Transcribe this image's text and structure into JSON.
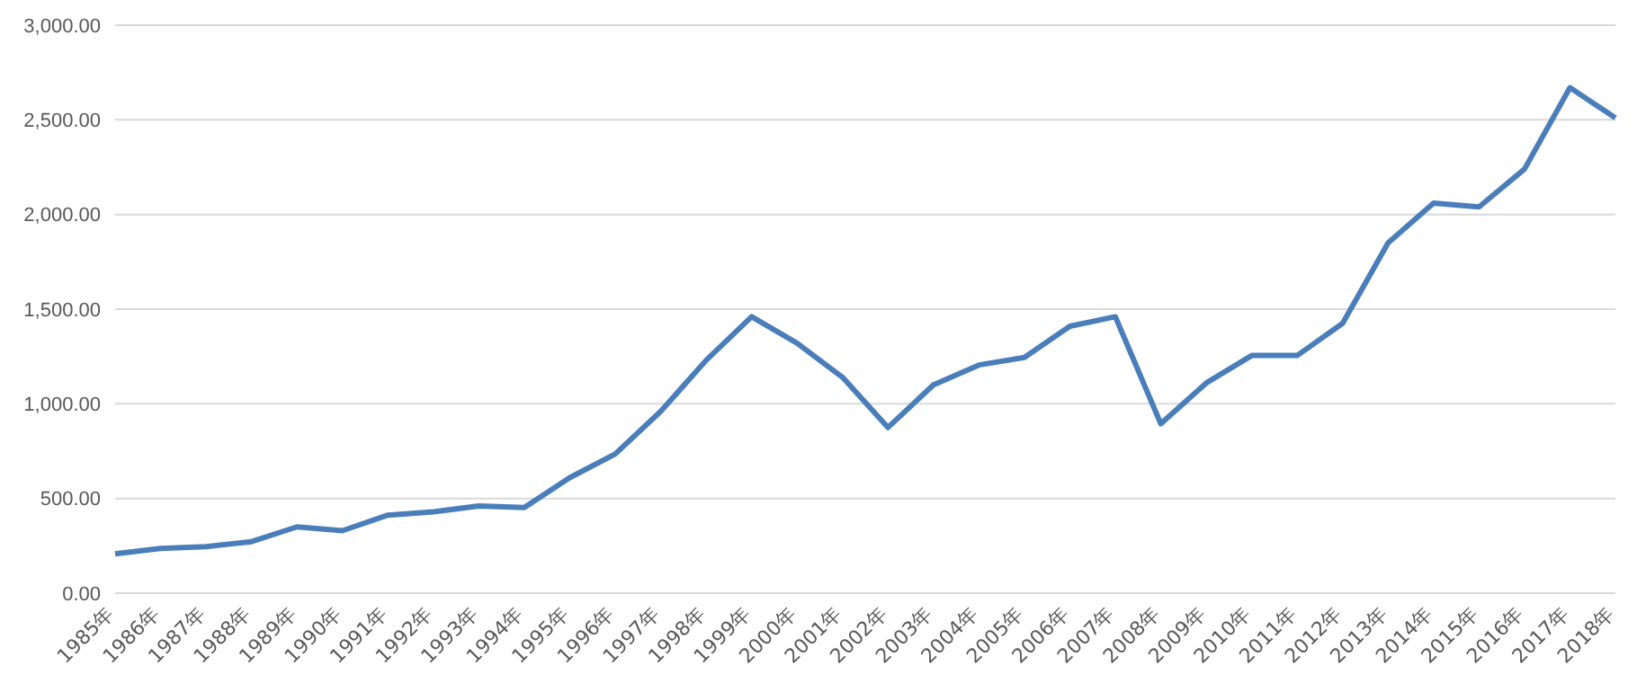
{
  "chart_data": {
    "type": "line",
    "categories": [
      "1985年",
      "1986年",
      "1987年",
      "1988年",
      "1989年",
      "1990年",
      "1991年",
      "1992年",
      "1993年",
      "1994年",
      "1995年",
      "1996年",
      "1997年",
      "1998年",
      "1999年",
      "2000年",
      "2001年",
      "2002年",
      "2003年",
      "2004年",
      "2005年",
      "2006年",
      "2007年",
      "2008年",
      "2009年",
      "2010年",
      "2011年",
      "2012年",
      "2013年",
      "2014年",
      "2015年",
      "2016年",
      "2017年",
      "2018年"
    ],
    "series": [
      {
        "color": "#4a7ebb",
        "values": [
          208,
          236,
          246,
          272,
          350,
          330,
          412,
          430,
          460,
          452,
          610,
          735,
          960,
          1230,
          1460,
          1320,
          1140,
          875,
          1100,
          1205,
          1245,
          1410,
          1460,
          895,
          1110,
          1255,
          1255,
          1425,
          1850,
          2060,
          2040,
          2240,
          2670,
          2510
        ]
      }
    ],
    "ylim": [
      0,
      3000
    ],
    "yticks": [
      {
        "value": 0,
        "label": "0.00"
      },
      {
        "value": 500,
        "label": "500.00"
      },
      {
        "value": 1000,
        "label": "1,000.00"
      },
      {
        "value": 1500,
        "label": "1,500.00"
      },
      {
        "value": 2000,
        "label": "2,000.00"
      },
      {
        "value": 2500,
        "label": "2,500.00"
      },
      {
        "value": 3000,
        "label": "3,000.00"
      }
    ],
    "grid": "y",
    "legend": false,
    "marker": "none",
    "line_style": "solid"
  }
}
